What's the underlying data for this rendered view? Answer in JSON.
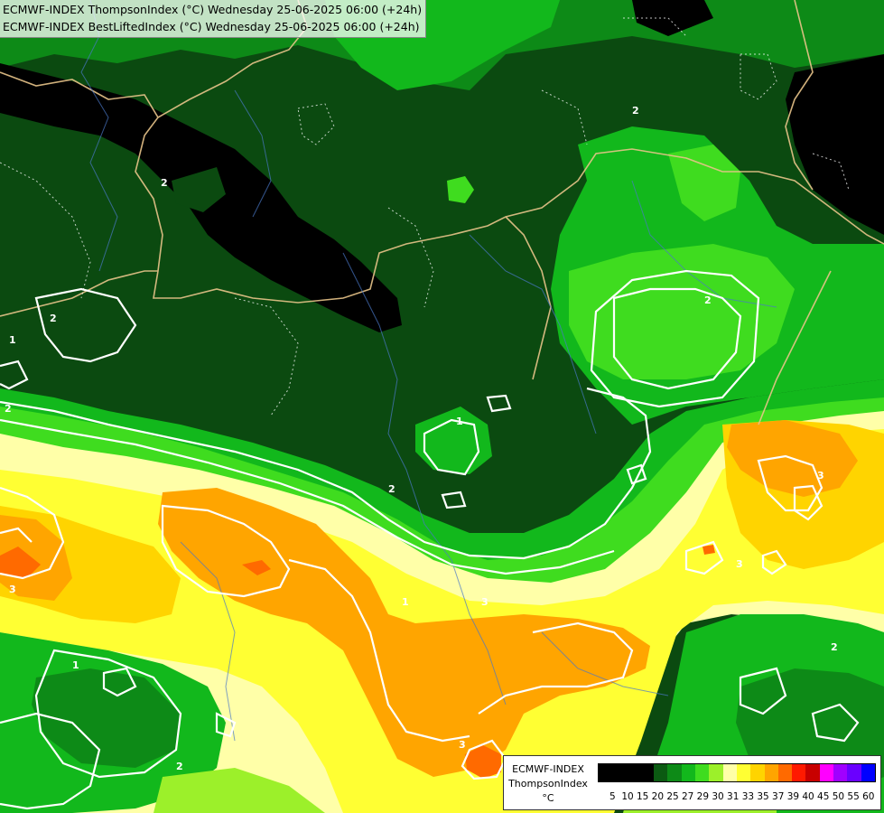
{
  "title": {
    "line1": "ECMWF-INDEX ThompsonIndex (°C) Wednesday 25-06-2025 06:00 (+24h)",
    "line2": "ECMWF-INDEX BestLiftedIndex (°C) Wednesday 25-06-2025 06:00 (+24h)"
  },
  "legend": {
    "label1": "ECMWF-INDEX",
    "label2": "ThompsonIndex",
    "unit": "°C",
    "ticks": [
      "5",
      "10",
      "15",
      "20",
      "25",
      "27",
      "29",
      "30",
      "31",
      "33",
      "35",
      "37",
      "39",
      "40",
      "45",
      "50",
      "55",
      "60"
    ],
    "colors": [
      "#000000",
      "#000000",
      "#000000",
      "#000000",
      "#0b5a12",
      "#0d8a17",
      "#12b81c",
      "#3fdc1f",
      "#9cf02a",
      "#ffffa8",
      "#ffff33",
      "#ffd400",
      "#ffa500",
      "#ff6a00",
      "#ff1a00",
      "#c80000",
      "#ff00ff",
      "#a000ff",
      "#6a00ff",
      "#0000ff"
    ]
  },
  "map": {
    "contour_labels": [
      "2",
      "2",
      "2",
      "2",
      "2",
      "2",
      "1",
      "1",
      "1",
      "1",
      "3",
      "3",
      "3",
      "3",
      "2",
      "2",
      "3"
    ],
    "colors": {
      "black": "#000000",
      "dark_green": "#0b4a10",
      "green": "#0d8a17",
      "bright_green": "#12b81c",
      "light_green": "#3fdc1f",
      "pale_green": "#9cf02a",
      "cream": "#ffffa8",
      "yellow": "#ffff33",
      "gold": "#ffd400",
      "orange": "#ffa500",
      "red_orange": "#ff6a00"
    }
  }
}
